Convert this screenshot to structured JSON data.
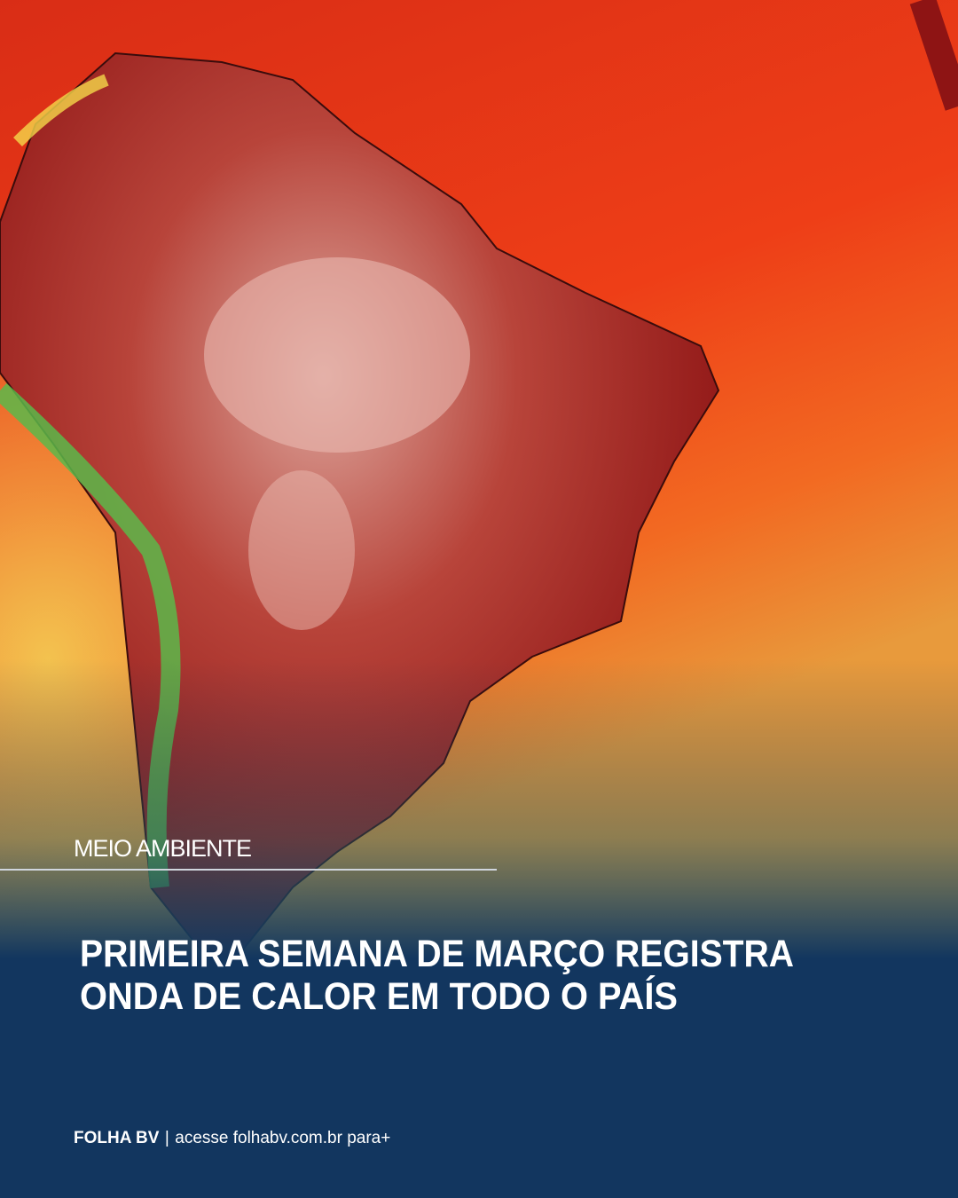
{
  "category": "MEIO AMBIENTE",
  "headline": [
    "PRIMEIRA SEMANA DE MARÇO REGISTRA",
    "ONDA DE CALOR EM TODO O PAÍS"
  ],
  "footer": {
    "brand": "FOLHA BV",
    "separator": "|",
    "link_text": "acesse folhabv.com.br para+"
  }
}
